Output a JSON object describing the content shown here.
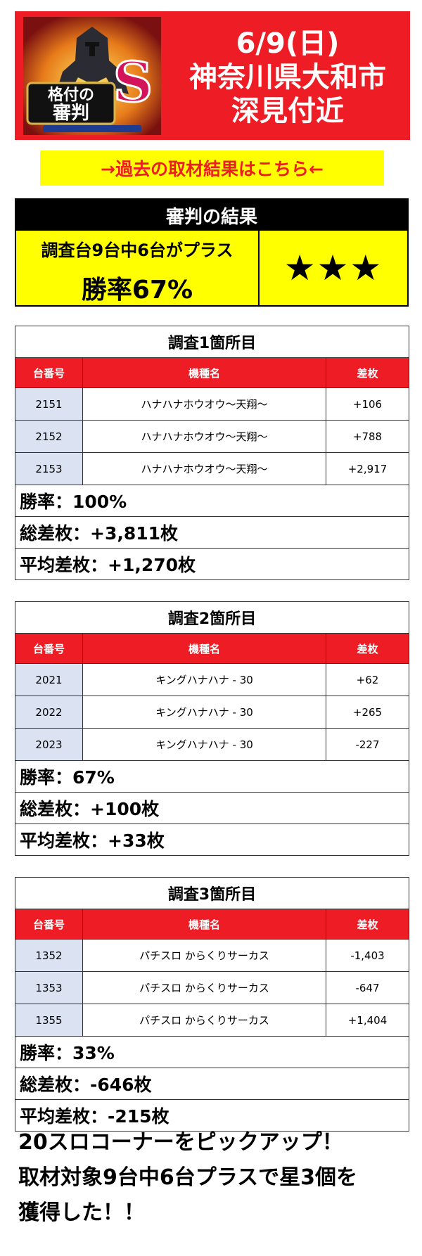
{
  "banner": {
    "logo_text": "格付の審判S",
    "date": "6/9(日)",
    "location_line1": "神奈川県大和市",
    "location_line2": "深見付近"
  },
  "link": {
    "label": "→過去の取材結果はこちら←"
  },
  "verdict": {
    "header": "審判の結果",
    "summary": "調査台9台中6台がプラス",
    "winrate": "勝率67%",
    "stars": "★★★"
  },
  "columns": {
    "machine_no": "台番号",
    "model": "機種名",
    "diff": "差枚"
  },
  "surveys": [
    {
      "title": "調査1箇所目",
      "rows": [
        {
          "no": "2151",
          "model": "ハナハナホウオウ～天翔～",
          "diff": "+106"
        },
        {
          "no": "2152",
          "model": "ハナハナホウオウ～天翔～",
          "diff": "+788"
        },
        {
          "no": "2153",
          "model": "ハナハナホウオウ～天翔～",
          "diff": "+2,917"
        }
      ],
      "winrate": "勝率：100%",
      "total": "総差枚：+3,811枚",
      "average": "平均差枚：+1,270枚"
    },
    {
      "title": "調査2箇所目",
      "rows": [
        {
          "no": "2021",
          "model": "キングハナハナ - 30",
          "diff": "+62"
        },
        {
          "no": "2022",
          "model": "キングハナハナ - 30",
          "diff": "+265"
        },
        {
          "no": "2023",
          "model": "キングハナハナ - 30",
          "diff": "-227"
        }
      ],
      "winrate": "勝率：67%",
      "total": "総差枚：+100枚",
      "average": "平均差枚：+33枚"
    },
    {
      "title": "調査3箇所目",
      "rows": [
        {
          "no": "1352",
          "model": "パチスロ からくりサーカス",
          "diff": "-1,403"
        },
        {
          "no": "1353",
          "model": "パチスロ からくりサーカス",
          "diff": "-647"
        },
        {
          "no": "1355",
          "model": "パチスロ からくりサーカス",
          "diff": "+1,404"
        }
      ],
      "winrate": "勝率：33%",
      "total": "総差枚：-646枚",
      "average": "平均差枚：-215枚"
    }
  ],
  "footer": {
    "line1": "20スロコーナーをピックアップ！",
    "line2": "取材対象9台中6台プラスで星3個を",
    "line3": "獲得した！！"
  }
}
